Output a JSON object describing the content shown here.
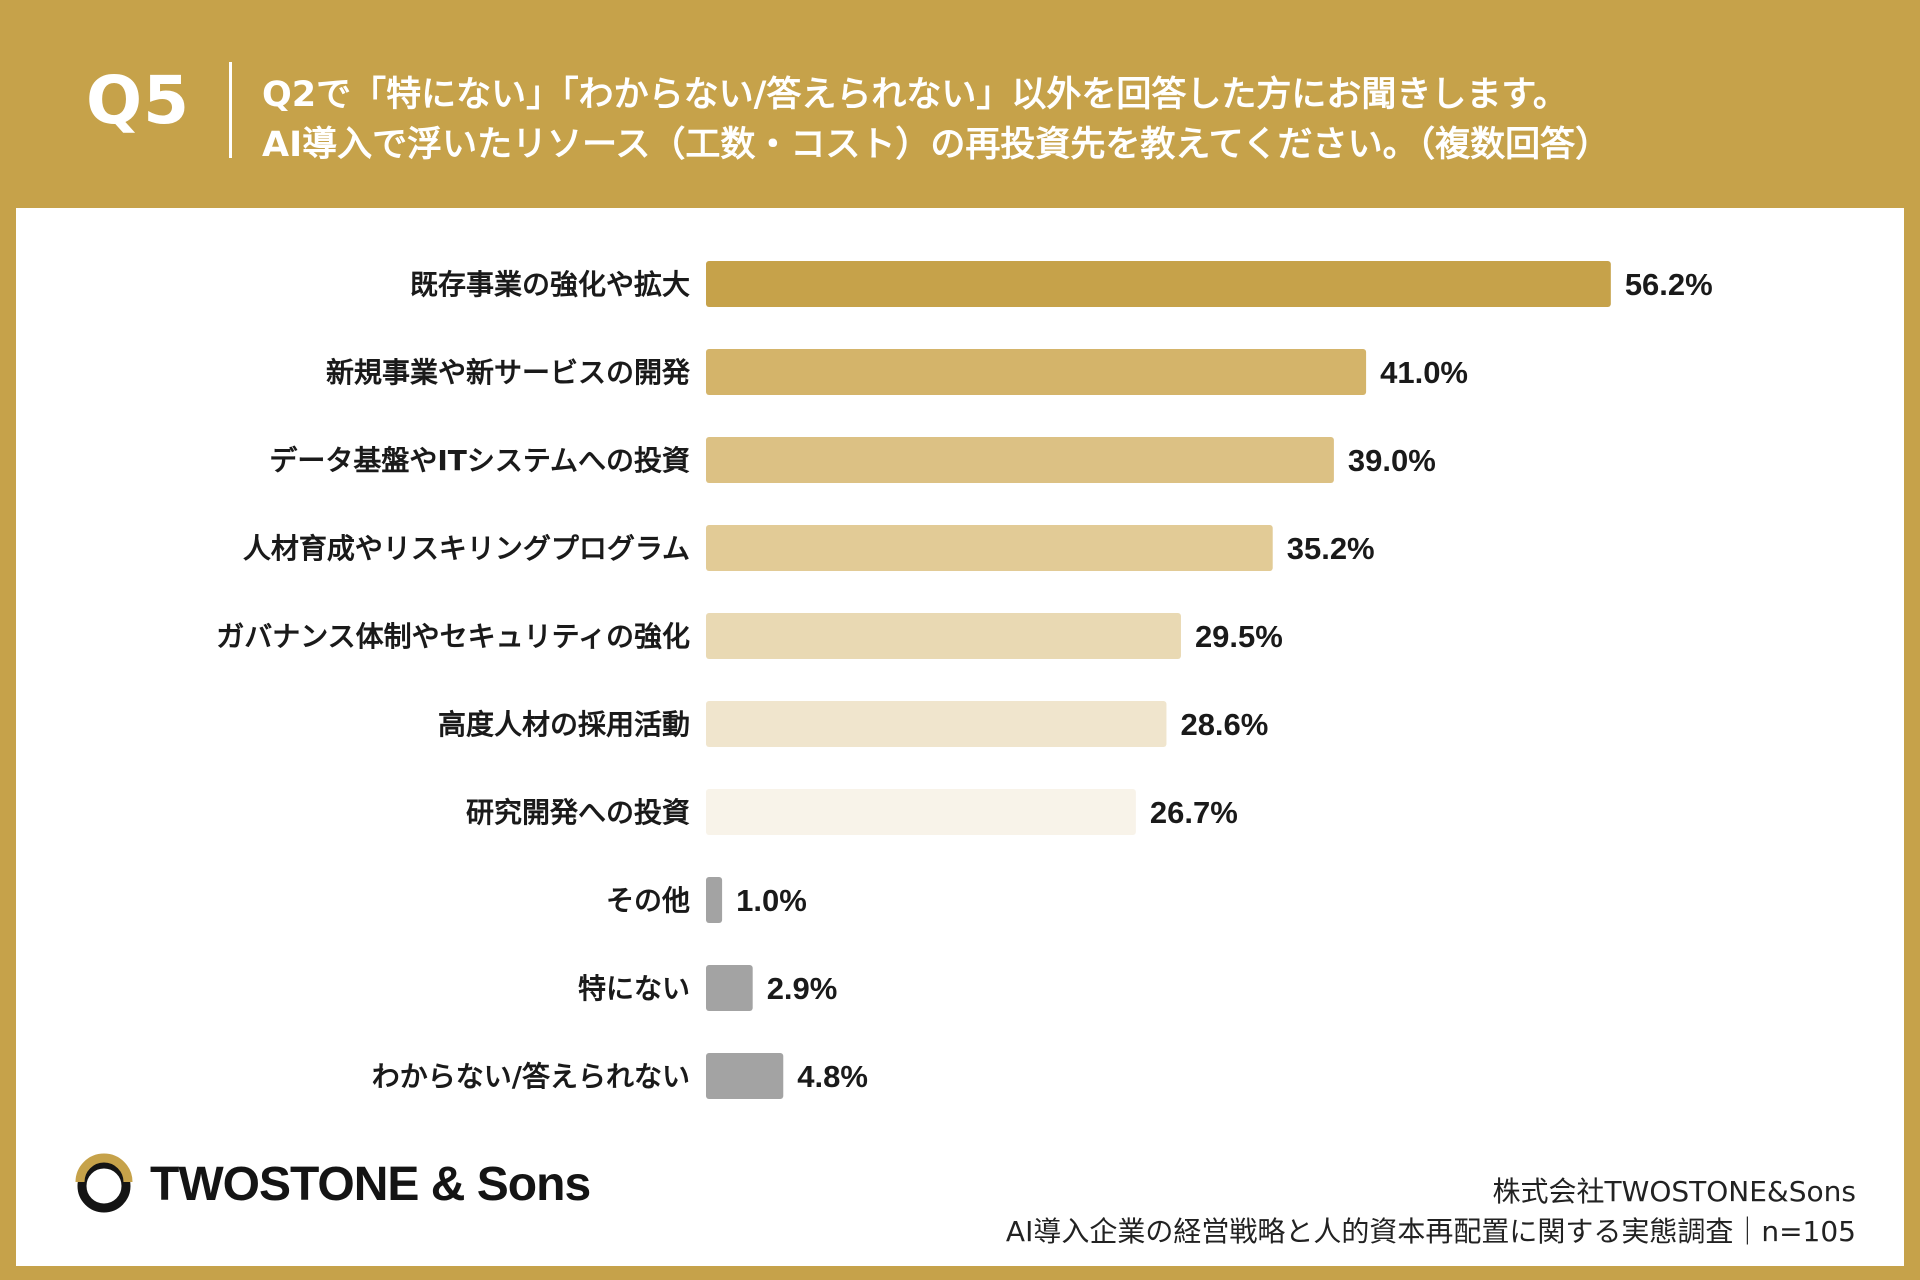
{
  "header": {
    "question_number": "Q5",
    "question_line1": "Q2で「特にない」「わからない/答えられない」以外を回答した方にお聞きします。",
    "question_line2": "AI導入で浮いたリソース（工数・コスト）の再投資先を教えてください。（複数回答）",
    "background_color": "#c6a24a"
  },
  "chart_data": {
    "type": "bar",
    "orientation": "horizontal",
    "unit": "%",
    "categories": [
      "既存事業の強化や拡大",
      "新規事業や新サービスの開発",
      "データ基盤やITシステムへの投資",
      "人材育成やリスキリングプログラム",
      "ガバナンス体制やセキュリティの強化",
      "高度人材の採用活動",
      "研究開発への投資",
      "その他",
      "特にない",
      "わからない/答えられない"
    ],
    "values": [
      56.2,
      41.0,
      39.0,
      35.2,
      29.5,
      28.6,
      26.7,
      1.0,
      2.9,
      4.8
    ],
    "labels": [
      "56.2%",
      "41.0%",
      "39.0%",
      "35.2%",
      "29.5%",
      "28.6%",
      "26.7%",
      "1.0%",
      "2.9%",
      "4.8%"
    ],
    "colors": [
      "#c6a24a",
      "#d4b46a",
      "#dcc184",
      "#e2cb96",
      "#e9d9b3",
      "#f0e5cd",
      "#f8f3e9",
      "#a3a3a3",
      "#a3a3a3",
      "#a3a3a3"
    ],
    "xlim": [
      0,
      100
    ],
    "grid": false,
    "legend": "none"
  },
  "logo": {
    "text": "TWOSTONE & Sons",
    "mark_icon": "ring-logo-icon"
  },
  "footer": {
    "company": "株式会社TWOSTONE&Sons",
    "survey": "AI導入企業の経営戦略と人的資本再配置に関する実態調査｜n=105"
  }
}
